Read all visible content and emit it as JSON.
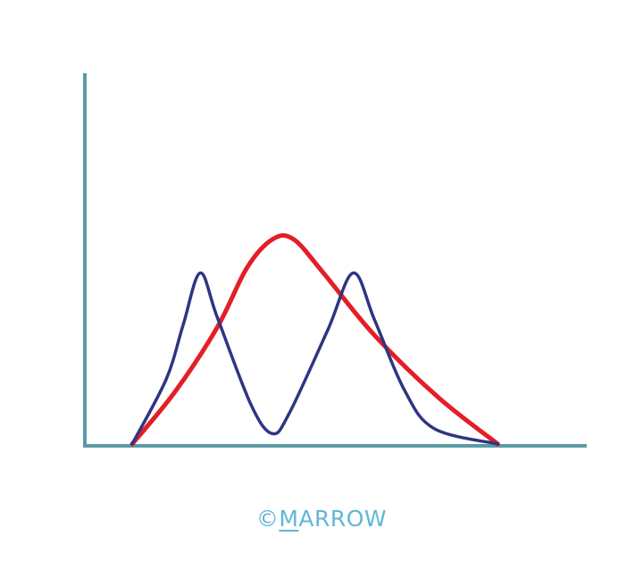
{
  "chart_data": {
    "type": "line",
    "title": "",
    "xlabel": "",
    "ylabel": "",
    "xlim": [
      0,
      100
    ],
    "ylim": [
      0,
      100
    ],
    "grid": false,
    "legend": "none",
    "axis_color": "#5b9aa3",
    "series": [
      {
        "color": "#e41e26",
        "points": [
          [
            0,
            0
          ],
          [
            10,
            20
          ],
          [
            20,
            45
          ],
          [
            27,
            68
          ],
          [
            33,
            79
          ],
          [
            38,
            79
          ],
          [
            45,
            66
          ],
          [
            57,
            42
          ],
          [
            72,
            18
          ],
          [
            86,
            0
          ]
        ]
      },
      {
        "color": "#2e3582",
        "points": [
          [
            0,
            0
          ],
          [
            8,
            25
          ],
          [
            12,
            46
          ],
          [
            16,
            66
          ],
          [
            20,
            49
          ],
          [
            28,
            15
          ],
          [
            33,
            4
          ],
          [
            37,
            12
          ],
          [
            46,
            44
          ],
          [
            52,
            66
          ],
          [
            57,
            48
          ],
          [
            64,
            21
          ],
          [
            71,
            6
          ],
          [
            86,
            0
          ]
        ]
      }
    ]
  },
  "watermark": {
    "copyright": "©",
    "first_letter": "M",
    "rest": "ARROW",
    "color": "#62b6d6"
  }
}
